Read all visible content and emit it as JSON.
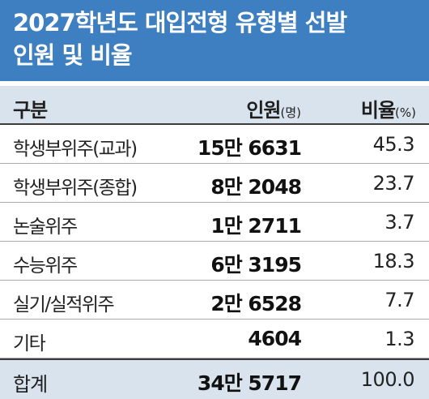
{
  "title": {
    "line1": "2027학년도 대입전형 유형별 선발",
    "line2": "인원 및 비율"
  },
  "header": {
    "col1": "구분",
    "col2": "인원",
    "col2_unit": "(명)",
    "col3": "비율",
    "col3_unit": "(%)"
  },
  "rows": [
    {
      "name": "학생부위주(교과)",
      "count": "15만 6631",
      "ratio": "45.3"
    },
    {
      "name": "학생부위주(종합)",
      "count": "8만 2048",
      "ratio": "23.7"
    },
    {
      "name": "논술위주",
      "count": "1만 2711",
      "ratio": "3.7"
    },
    {
      "name": "수능위주",
      "count": "6만 3195",
      "ratio": "18.3"
    },
    {
      "name": "실기/실적위주",
      "count": "2만 6528",
      "ratio": "7.7"
    },
    {
      "name": "기타",
      "count": "4604",
      "ratio": "1.3"
    }
  ],
  "total": {
    "name": "합계",
    "count": "34만 5717",
    "ratio": "100.0"
  },
  "colors": {
    "title_band": "#3e7fc1",
    "header_band": "#d9e3ee",
    "title_text": "#ffffff"
  }
}
